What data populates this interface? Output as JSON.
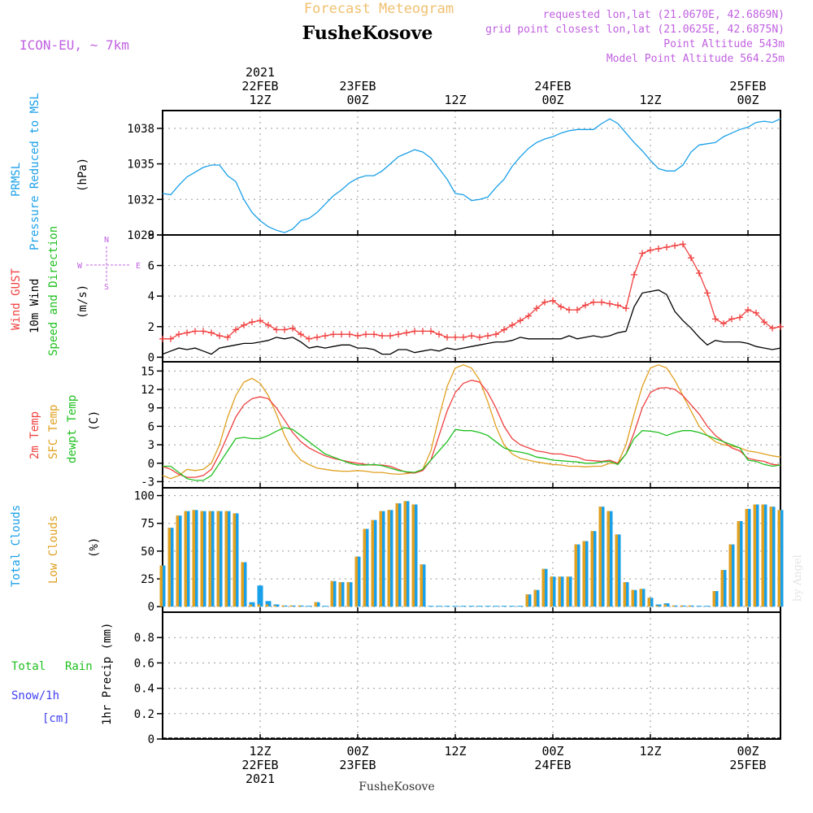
{
  "header": {
    "title": "Forecast Meteogram",
    "location": "FusheKosove",
    "model": "ICON-EU, ~ 7km",
    "requested": "requested lon,lat (21.0670E, 42.6869N)",
    "closest": "grid point closest lon,lat (21.0625E, 42.6875N)",
    "altitude": "Point Altitude 543m",
    "model_altitude": "Model Point Altitude 564.25m",
    "footer": "FusheKosove",
    "watermark": "by Angel"
  },
  "time_axis": {
    "top_labels": [
      {
        "t": 12,
        "lines": [
          "2021",
          "22FEB",
          "12Z"
        ]
      },
      {
        "t": 24,
        "lines": [
          "23FEB",
          "00Z"
        ]
      },
      {
        "t": 36,
        "lines": [
          "12Z"
        ]
      },
      {
        "t": 48,
        "lines": [
          "24FEB",
          "00Z"
        ]
      },
      {
        "t": 60,
        "lines": [
          "12Z"
        ]
      },
      {
        "t": 72,
        "lines": [
          "25FEB",
          "00Z"
        ]
      }
    ],
    "bottom_labels": [
      {
        "t": 12,
        "lines": [
          "12Z",
          "22FEB",
          "2021"
        ]
      },
      {
        "t": 24,
        "lines": [
          "00Z",
          "23FEB"
        ]
      },
      {
        "t": 36,
        "lines": [
          "12Z"
        ]
      },
      {
        "t": 48,
        "lines": [
          "00Z",
          "24FEB"
        ]
      },
      {
        "t": 60,
        "lines": [
          "12Z"
        ]
      },
      {
        "t": 72,
        "lines": [
          "00Z",
          "25FEB"
        ]
      }
    ]
  },
  "panels": {
    "pressure": {
      "labels": [
        "PRMSL",
        "Pressure Reduced to MSL"
      ],
      "unit": "(hPa)"
    },
    "wind": {
      "labels": [
        "Wind GUST",
        "10m Wind",
        "Speed and Direction"
      ],
      "unit": "(m/s)",
      "compass": {
        "n": "N",
        "s": "S",
        "w": "W",
        "e": "E"
      }
    },
    "temp": {
      "labels": [
        "2m Temp",
        "SFC Temp",
        "dewpt Temp"
      ],
      "unit": "(C)"
    },
    "clouds": {
      "labels": [
        "Total Clouds",
        "Low Clouds"
      ],
      "unit": "(%)"
    },
    "precip": {
      "labels": [
        "Total",
        "Rain",
        "Snow/1h",
        "[cm]"
      ],
      "unit": "1hr Precip (mm)"
    }
  },
  "colors": {
    "pressure": "#1aa0e8",
    "gust": "#f04040",
    "wind": "#000000",
    "temp2m": "#f04040",
    "sfc": "#e0a020",
    "dewpt": "#20c020",
    "total_clouds": "#1aa0e8",
    "low_clouds": "#e0a020",
    "rain": "#20c020",
    "snow": "#4040f0",
    "header_title": "#f0c070",
    "header_info": "#c060e0"
  },
  "chart_data": [
    {
      "type": "line",
      "name": "PRMSL",
      "ylim": [
        1029,
        1039.5
      ],
      "yticks": [
        1029,
        1032,
        1035,
        1038
      ],
      "x": [
        0,
        1,
        2,
        3,
        4,
        5,
        6,
        7,
        8,
        9,
        10,
        11,
        12,
        13,
        14,
        15,
        16,
        17,
        18,
        19,
        20,
        21,
        22,
        23,
        24,
        25,
        26,
        27,
        28,
        29,
        30,
        31,
        32,
        33,
        34,
        35,
        36,
        37,
        38,
        39,
        40,
        41,
        42,
        43,
        44,
        45,
        46,
        47,
        48,
        49,
        50,
        51,
        52,
        53,
        54,
        55,
        56,
        57,
        58,
        59,
        60,
        61,
        62,
        63,
        64,
        65,
        66,
        67,
        68,
        69,
        70,
        71,
        72,
        73,
        74,
        75,
        76
      ],
      "values": [
        1032.5,
        1032.4,
        1033.2,
        1033.9,
        1034.3,
        1034.7,
        1034.9,
        1034.9,
        1034.0,
        1033.5,
        1032.0,
        1030.9,
        1030.2,
        1029.7,
        1029.4,
        1029.2,
        1029.5,
        1030.2,
        1030.4,
        1030.9,
        1031.6,
        1032.3,
        1032.8,
        1033.4,
        1033.8,
        1034.0,
        1034.0,
        1034.4,
        1035.0,
        1035.6,
        1035.9,
        1036.2,
        1036.0,
        1035.5,
        1034.6,
        1033.7,
        1032.5,
        1032.4,
        1031.9,
        1032.0,
        1032.2,
        1033.0,
        1033.7,
        1034.8,
        1035.6,
        1036.3,
        1036.8,
        1037.1,
        1037.3,
        1037.6,
        1037.8,
        1037.9,
        1037.9,
        1037.9,
        1038.4,
        1038.8,
        1038.4,
        1037.6,
        1036.8,
        1036.1,
        1035.3,
        1034.6,
        1034.4,
        1034.4,
        1034.9,
        1036.0,
        1036.6,
        1036.7,
        1036.8,
        1037.3,
        1037.6,
        1037.9,
        1038.1,
        1038.5,
        1038.6,
        1038.5,
        1038.8
      ]
    },
    {
      "type": "line",
      "name": "Wind",
      "ylim": [
        -0.3,
        8
      ],
      "yticks": [
        0,
        2,
        4,
        6,
        8
      ],
      "x": [
        0,
        1,
        2,
        3,
        4,
        5,
        6,
        7,
        8,
        9,
        10,
        11,
        12,
        13,
        14,
        15,
        16,
        17,
        18,
        19,
        20,
        21,
        22,
        23,
        24,
        25,
        26,
        27,
        28,
        29,
        30,
        31,
        32,
        33,
        34,
        35,
        36,
        37,
        38,
        39,
        40,
        41,
        42,
        43,
        44,
        45,
        46,
        47,
        48,
        49,
        50,
        51,
        52,
        53,
        54,
        55,
        56,
        57,
        58,
        59,
        60,
        61,
        62,
        63,
        64,
        65,
        66,
        67,
        68,
        69,
        70,
        71,
        72,
        73,
        74,
        75,
        76
      ],
      "gust": [
        1.2,
        1.2,
        1.5,
        1.6,
        1.7,
        1.7,
        1.6,
        1.4,
        1.3,
        1.8,
        2.1,
        2.3,
        2.4,
        2.1,
        1.8,
        1.8,
        1.9,
        1.5,
        1.2,
        1.3,
        1.4,
        1.5,
        1.5,
        1.5,
        1.4,
        1.5,
        1.5,
        1.4,
        1.4,
        1.5,
        1.6,
        1.7,
        1.7,
        1.7,
        1.5,
        1.3,
        1.3,
        1.3,
        1.4,
        1.3,
        1.4,
        1.5,
        1.8,
        2.1,
        2.4,
        2.7,
        3.2,
        3.6,
        3.7,
        3.3,
        3.1,
        3.1,
        3.4,
        3.6,
        3.6,
        3.5,
        3.4,
        3.2,
        5.4,
        6.8,
        7.0,
        7.1,
        7.2,
        7.3,
        7.4,
        6.5,
        5.5,
        4.2,
        2.5,
        2.2,
        2.5,
        2.6,
        3.1,
        2.9,
        2.3,
        1.9,
        2.0
      ],
      "speed": [
        0.2,
        0.4,
        0.6,
        0.5,
        0.6,
        0.4,
        0.2,
        0.6,
        0.7,
        0.8,
        0.9,
        0.9,
        1.0,
        1.1,
        1.3,
        1.2,
        1.3,
        1.0,
        0.6,
        0.7,
        0.6,
        0.7,
        0.8,
        0.8,
        0.6,
        0.6,
        0.5,
        0.2,
        0.2,
        0.5,
        0.5,
        0.3,
        0.4,
        0.5,
        0.4,
        0.6,
        0.5,
        0.6,
        0.7,
        0.8,
        0.9,
        1.0,
        1.0,
        1.1,
        1.3,
        1.2,
        1.2,
        1.2,
        1.2,
        1.2,
        1.4,
        1.2,
        1.3,
        1.4,
        1.3,
        1.4,
        1.6,
        1.7,
        3.3,
        4.2,
        4.3,
        4.4,
        4.1,
        3.0,
        2.4,
        1.9,
        1.3,
        0.8,
        1.1,
        1.0,
        1.0,
        1.0,
        0.9,
        0.7,
        0.6,
        0.5,
        0.6
      ],
      "direction": [
        -1,
        -1,
        -1,
        -1,
        -1,
        -1,
        -1,
        -1,
        -1,
        -1,
        -1,
        -1,
        -1,
        -1,
        -1,
        -1,
        -1,
        -1,
        -1,
        -1,
        -1,
        -1,
        -1,
        -1,
        -1,
        -1,
        -1,
        -1,
        -1,
        -1,
        -1,
        -1,
        -1,
        -1,
        -1,
        -1,
        -1,
        -1,
        -1,
        -1,
        -1,
        -1,
        -1,
        -1,
        -1,
        -1,
        -1,
        -1,
        -1,
        -1,
        -1,
        -1,
        -1,
        -1,
        -1,
        -1,
        -1,
        -1,
        -1,
        -1,
        -1,
        -1,
        -1,
        -1,
        -1,
        -1,
        -1,
        -1,
        -1,
        -1,
        -1,
        -1,
        -1,
        -1,
        -1,
        -1,
        -1
      ]
    },
    {
      "type": "line",
      "name": "Temperature",
      "ylim": [
        -4,
        16.5
      ],
      "yticks": [
        -3,
        0,
        3,
        6,
        9,
        12,
        15
      ],
      "x": [
        0,
        1,
        2,
        3,
        4,
        5,
        6,
        7,
        8,
        9,
        10,
        11,
        12,
        13,
        14,
        15,
        16,
        17,
        18,
        19,
        20,
        21,
        22,
        23,
        24,
        25,
        26,
        27,
        28,
        29,
        30,
        31,
        32,
        33,
        34,
        35,
        36,
        37,
        38,
        39,
        40,
        41,
        42,
        43,
        44,
        45,
        46,
        47,
        48,
        49,
        50,
        51,
        52,
        53,
        54,
        55,
        56,
        57,
        58,
        59,
        60,
        61,
        62,
        63,
        64,
        65,
        66,
        67,
        68,
        69,
        70,
        71,
        72,
        73,
        74,
        75,
        76
      ],
      "t2m": [
        -0.5,
        -1.0,
        -1.8,
        -2.3,
        -2.3,
        -2.0,
        -1.0,
        1.5,
        4.5,
        7.5,
        9.5,
        10.5,
        10.8,
        10.5,
        9.0,
        7.0,
        5.0,
        3.5,
        2.5,
        1.8,
        1.2,
        0.8,
        0.5,
        0.2,
        0.0,
        -0.2,
        -0.3,
        -0.3,
        -0.5,
        -1.0,
        -1.5,
        -1.6,
        -1.2,
        0.5,
        4.5,
        8.5,
        11.5,
        13.0,
        13.5,
        13.2,
        11.5,
        9.0,
        6.0,
        4.0,
        3.0,
        2.5,
        2.0,
        1.8,
        1.5,
        1.5,
        1.2,
        1.0,
        0.5,
        0.4,
        0.3,
        0.5,
        0.0,
        1.5,
        5.0,
        9.0,
        11.5,
        12.2,
        12.3,
        12.0,
        11.0,
        9.5,
        8.0,
        6.0,
        4.5,
        3.5,
        2.5,
        2.0,
        0.8,
        0.5,
        0.3,
        -0.2,
        -0.3
      ],
      "sfc": [
        -2.0,
        -2.5,
        -2.0,
        -1.0,
        -1.2,
        -1.0,
        0.0,
        3.0,
        7.5,
        11.0,
        13.2,
        13.8,
        13.0,
        11.0,
        8.0,
        4.5,
        2.0,
        0.5,
        -0.2,
        -0.8,
        -1.0,
        -1.2,
        -1.3,
        -1.3,
        -1.2,
        -1.3,
        -1.5,
        -1.5,
        -1.7,
        -1.8,
        -1.7,
        -1.5,
        -1.0,
        2.0,
        7.5,
        12.5,
        15.5,
        16.0,
        15.5,
        13.5,
        10.0,
        6.0,
        3.0,
        1.5,
        0.8,
        0.5,
        0.2,
        0.0,
        -0.2,
        -0.3,
        -0.5,
        -0.5,
        -0.6,
        -0.5,
        -0.5,
        0.0,
        0.0,
        3.0,
        8.0,
        12.5,
        15.5,
        16.0,
        15.5,
        13.5,
        11.0,
        8.5,
        6.0,
        4.5,
        3.5,
        3.0,
        2.8,
        2.5,
        2.0,
        1.8,
        1.5,
        1.2,
        1.0
      ],
      "dewpt": [
        -0.5,
        -0.5,
        -1.5,
        -2.5,
        -2.8,
        -2.8,
        -2.0,
        0.0,
        2.0,
        4.0,
        4.2,
        4.0,
        4.0,
        4.5,
        5.2,
        5.8,
        5.5,
        4.5,
        3.5,
        2.5,
        1.5,
        1.0,
        0.5,
        0.0,
        -0.3,
        -0.3,
        -0.2,
        -0.4,
        -0.8,
        -1.2,
        -1.4,
        -1.5,
        -1.0,
        0.5,
        2.0,
        3.5,
        5.5,
        5.3,
        5.3,
        5.0,
        4.5,
        3.5,
        2.5,
        2.0,
        1.8,
        1.5,
        1.0,
        0.8,
        0.5,
        0.4,
        0.3,
        0.2,
        0.0,
        0.0,
        0.2,
        0.3,
        -0.2,
        1.5,
        4.0,
        5.3,
        5.2,
        5.0,
        4.5,
        5.0,
        5.3,
        5.3,
        5.0,
        4.5,
        4.0,
        3.5,
        3.0,
        2.5,
        0.5,
        0.3,
        -0.2,
        -0.5,
        -0.3
      ]
    },
    {
      "type": "bar",
      "name": "Clouds",
      "ylim": [
        -5,
        107
      ],
      "yticks": [
        0,
        25,
        50,
        75,
        100
      ],
      "x": [
        0,
        1,
        2,
        3,
        4,
        5,
        6,
        7,
        8,
        9,
        10,
        11,
        12,
        13,
        14,
        15,
        16,
        17,
        18,
        19,
        20,
        21,
        22,
        23,
        24,
        25,
        26,
        27,
        28,
        29,
        30,
        31,
        32,
        33,
        34,
        35,
        36,
        37,
        38,
        39,
        40,
        41,
        42,
        43,
        44,
        45,
        46,
        47,
        48,
        49,
        50,
        51,
        52,
        53,
        54,
        55,
        56,
        57,
        58,
        59,
        60,
        61,
        62,
        63,
        64,
        65,
        66,
        67,
        68,
        69,
        70,
        71,
        72,
        73,
        74,
        75,
        76
      ],
      "total": [
        37,
        71,
        82,
        86,
        87,
        86,
        86,
        86,
        86,
        84,
        40,
        4,
        19,
        5,
        2,
        1,
        1,
        1,
        0,
        4,
        0,
        23,
        22,
        22,
        45,
        70,
        78,
        86,
        87,
        93,
        95,
        92,
        38,
        0,
        0,
        0,
        0,
        0,
        0,
        0,
        0,
        0,
        0,
        0,
        0,
        11,
        15,
        34,
        27,
        27,
        27,
        56,
        59,
        68,
        90,
        86,
        65,
        22,
        15,
        16,
        8,
        2,
        3,
        1,
        1,
        1,
        0,
        0,
        14,
        33,
        56,
        77,
        88,
        92,
        92,
        90,
        87
      ],
      "low": [
        37,
        71,
        82,
        86,
        87,
        86,
        86,
        86,
        86,
        84,
        40,
        2,
        2,
        2,
        1,
        1,
        1,
        1,
        0,
        4,
        0,
        23,
        22,
        22,
        45,
        70,
        78,
        86,
        87,
        93,
        95,
        92,
        38,
        0,
        0,
        0,
        0,
        0,
        0,
        0,
        0,
        0,
        0,
        0,
        0,
        11,
        15,
        34,
        27,
        27,
        27,
        56,
        59,
        68,
        90,
        86,
        65,
        22,
        15,
        16,
        8,
        1,
        2,
        1,
        1,
        1,
        0,
        0,
        14,
        33,
        56,
        77,
        88,
        92,
        92,
        90,
        87
      ]
    },
    {
      "type": "bar",
      "name": "Precip",
      "ylim": [
        0,
        1.0
      ],
      "yticks": [
        0,
        0.2,
        0.4,
        0.6,
        0.8
      ],
      "x": [
        0,
        76
      ],
      "total": [
        0,
        0
      ],
      "rain": [
        0,
        0
      ],
      "snow": [
        0,
        0
      ]
    }
  ]
}
